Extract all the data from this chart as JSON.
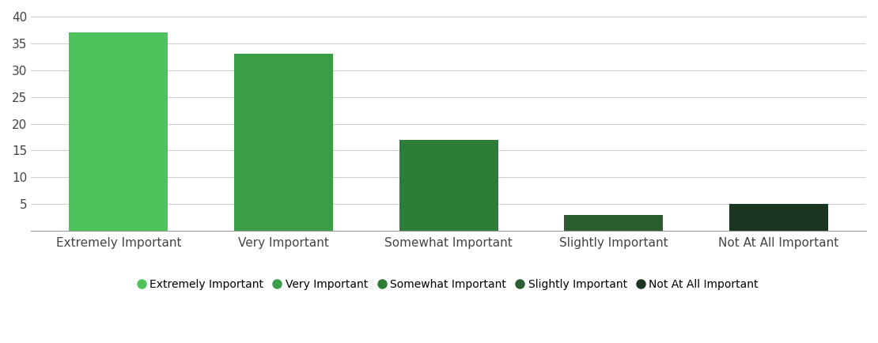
{
  "categories": [
    "Extremely Important",
    "Very Important",
    "Somewhat Important",
    "Slightly Important",
    "Not At All Important"
  ],
  "values": [
    37,
    33,
    17,
    3,
    5
  ],
  "bar_colors": [
    "#4ec35c",
    "#3a9e47",
    "#2e7d36",
    "#2a5e30",
    "#1a3520"
  ],
  "legend_colors": [
    "#4ec35c",
    "#3a9e47",
    "#2e7d36",
    "#2a5e30",
    "#1a3520"
  ],
  "legend_labels": [
    "Extremely Important",
    "Very Important",
    "Somewhat Important",
    "Slightly Important",
    "Not At All Important"
  ],
  "ylim": [
    0,
    40
  ],
  "yticks": [
    5,
    10,
    15,
    20,
    25,
    30,
    35,
    40
  ],
  "ytick_labels": [
    "5",
    "10",
    "15",
    "20",
    "25",
    "30",
    "35",
    "40"
  ],
  "background_color": "#ffffff",
  "grid_color": "#cccccc",
  "bar_width": 0.6,
  "tick_fontsize": 11,
  "legend_fontsize": 10,
  "axis_label_color": "#444444"
}
